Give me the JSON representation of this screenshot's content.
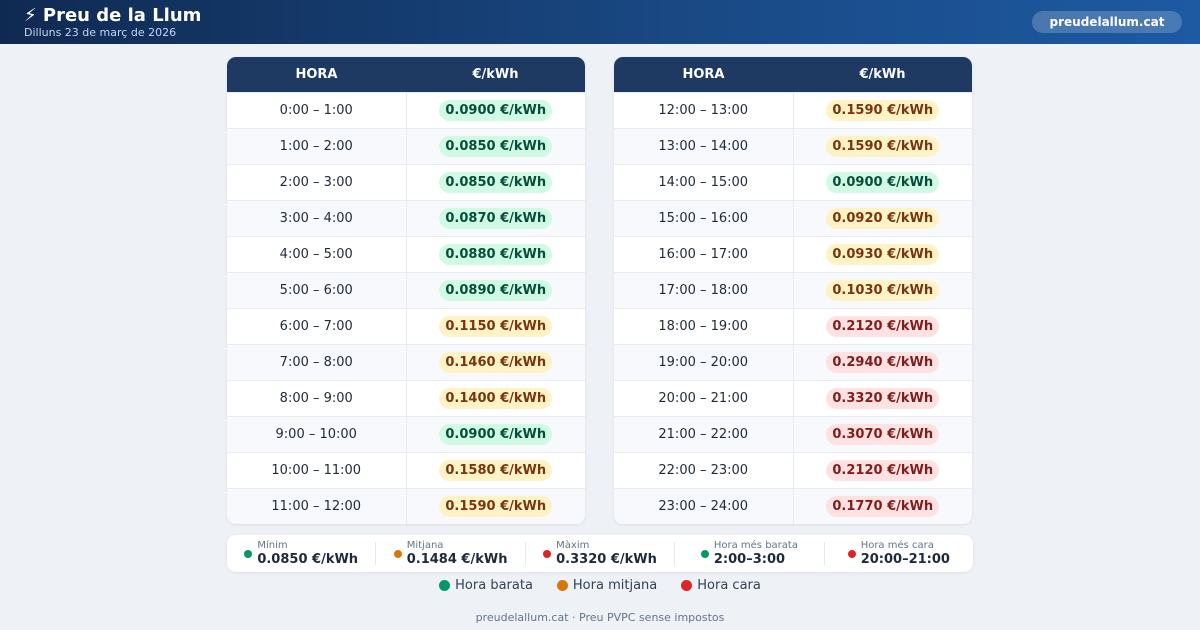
{
  "header": {
    "title": "⚡ Preu de la Llum",
    "date": "Dilluns 23 de març de 2026",
    "site": "preudelallum.cat"
  },
  "table": {
    "col_hour": "HORA",
    "col_price": "€/kWh",
    "left_rows": [
      {
        "hour": "0:00 – 1:00",
        "price": "0.0900 €/kWh",
        "level": "cheap"
      },
      {
        "hour": "1:00 – 2:00",
        "price": "0.0850 €/kWh",
        "level": "cheap"
      },
      {
        "hour": "2:00 – 3:00",
        "price": "0.0850 €/kWh",
        "level": "cheap"
      },
      {
        "hour": "3:00 – 4:00",
        "price": "0.0870 €/kWh",
        "level": "cheap"
      },
      {
        "hour": "4:00 – 5:00",
        "price": "0.0880 €/kWh",
        "level": "cheap"
      },
      {
        "hour": "5:00 – 6:00",
        "price": "0.0890 €/kWh",
        "level": "cheap"
      },
      {
        "hour": "6:00 – 7:00",
        "price": "0.1150 €/kWh",
        "level": "mid"
      },
      {
        "hour": "7:00 – 8:00",
        "price": "0.1460 €/kWh",
        "level": "mid"
      },
      {
        "hour": "8:00 – 9:00",
        "price": "0.1400 €/kWh",
        "level": "mid"
      },
      {
        "hour": "9:00 – 10:00",
        "price": "0.0900 €/kWh",
        "level": "cheap"
      },
      {
        "hour": "10:00 – 11:00",
        "price": "0.1580 €/kWh",
        "level": "mid"
      },
      {
        "hour": "11:00 – 12:00",
        "price": "0.1590 €/kWh",
        "level": "mid"
      }
    ],
    "right_rows": [
      {
        "hour": "12:00 – 13:00",
        "price": "0.1590 €/kWh",
        "level": "mid"
      },
      {
        "hour": "13:00 – 14:00",
        "price": "0.1590 €/kWh",
        "level": "mid"
      },
      {
        "hour": "14:00 – 15:00",
        "price": "0.0900 €/kWh",
        "level": "cheap"
      },
      {
        "hour": "15:00 – 16:00",
        "price": "0.0920 €/kWh",
        "level": "mid"
      },
      {
        "hour": "16:00 – 17:00",
        "price": "0.0930 €/kWh",
        "level": "mid"
      },
      {
        "hour": "17:00 – 18:00",
        "price": "0.1030 €/kWh",
        "level": "mid"
      },
      {
        "hour": "18:00 – 19:00",
        "price": "0.2120 €/kWh",
        "level": "high"
      },
      {
        "hour": "19:00 – 20:00",
        "price": "0.2940 €/kWh",
        "level": "high"
      },
      {
        "hour": "20:00 – 21:00",
        "price": "0.3320 €/kWh",
        "level": "high"
      },
      {
        "hour": "21:00 – 22:00",
        "price": "0.3070 €/kWh",
        "level": "high"
      },
      {
        "hour": "22:00 – 23:00",
        "price": "0.2120 €/kWh",
        "level": "high"
      },
      {
        "hour": "23:00 – 24:00",
        "price": "0.1770 €/kWh",
        "level": "high"
      }
    ]
  },
  "stats": [
    {
      "label": "Mínim",
      "value": "0.0850 €/kWh",
      "color": "#059669"
    },
    {
      "label": "Mitjana",
      "value": "0.1484 €/kWh",
      "color": "#d97706"
    },
    {
      "label": "Màxim",
      "value": "0.3320 €/kWh",
      "color": "#dc2626"
    },
    {
      "label": "Hora més barata",
      "value": "2:00–3:00",
      "color": "#059669"
    },
    {
      "label": "Hora més cara",
      "value": "20:00–21:00",
      "color": "#dc2626"
    }
  ],
  "legend": [
    {
      "label": "Hora barata",
      "color": "#059669"
    },
    {
      "label": "Hora mitjana",
      "color": "#d97706"
    },
    {
      "label": "Hora cara",
      "color": "#dc2626"
    }
  ],
  "footer": "preudelallum.cat · Preu PVPC sense impostos"
}
